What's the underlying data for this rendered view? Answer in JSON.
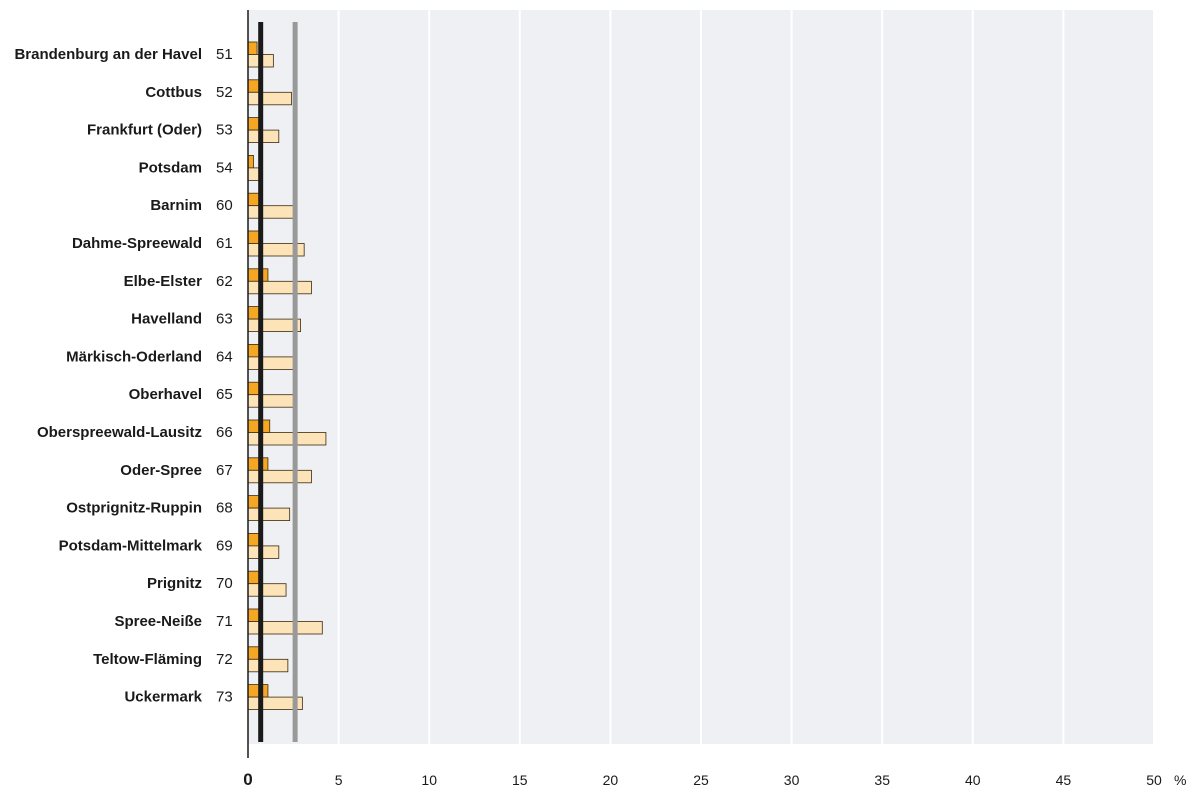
{
  "chart_data": {
    "type": "bar",
    "orientation": "horizontal",
    "categories": [
      "Brandenburg an der Havel",
      "Cottbus",
      "Frankfurt (Oder)",
      "Potsdam",
      "Barnim",
      "Dahme-Spreewald",
      "Elbe-Elster",
      "Havelland",
      "Märkisch-Oderland",
      "Oberhavel",
      "Oberspreewald-Lausitz",
      "Oder-Spree",
      "Ostprignitz-Ruppin",
      "Potsdam-Mittelmark",
      "Prignitz",
      "Spree-Neiße",
      "Teltow-Fläming",
      "Uckermark"
    ],
    "codes": [
      "51",
      "52",
      "53",
      "54",
      "60",
      "61",
      "62",
      "63",
      "64",
      "65",
      "66",
      "67",
      "68",
      "69",
      "70",
      "71",
      "72",
      "73"
    ],
    "series": [
      {
        "values": [
          0.5,
          0.7,
          0.6,
          0.3,
          0.7,
          0.7,
          1.1,
          0.7,
          0.7,
          0.7,
          1.2,
          1.1,
          0.7,
          0.6,
          0.7,
          0.7,
          0.7,
          1.1
        ]
      },
      {
        "values": [
          1.4,
          2.4,
          1.7,
          0.6,
          2.6,
          3.1,
          3.5,
          2.9,
          2.6,
          2.6,
          4.3,
          3.5,
          2.3,
          1.7,
          2.1,
          4.1,
          2.2,
          3.0
        ]
      }
    ],
    "reference_lines": [
      {
        "value": 0.7,
        "color": "#1a1a1a"
      },
      {
        "value": 2.6,
        "color": "#999999"
      }
    ],
    "xticks": [
      "0",
      "5",
      "10",
      "15",
      "20",
      "25",
      "30",
      "35",
      "40",
      "45",
      "50"
    ],
    "xlim": [
      0,
      50
    ],
    "xunit": "%",
    "grid": true,
    "colors": {
      "series1": "#f5a623",
      "series2": "#fde3b8",
      "bar_stroke": "#3a2a10",
      "plot_bg": "#eef0f3",
      "gridline": "#ffffff"
    }
  }
}
